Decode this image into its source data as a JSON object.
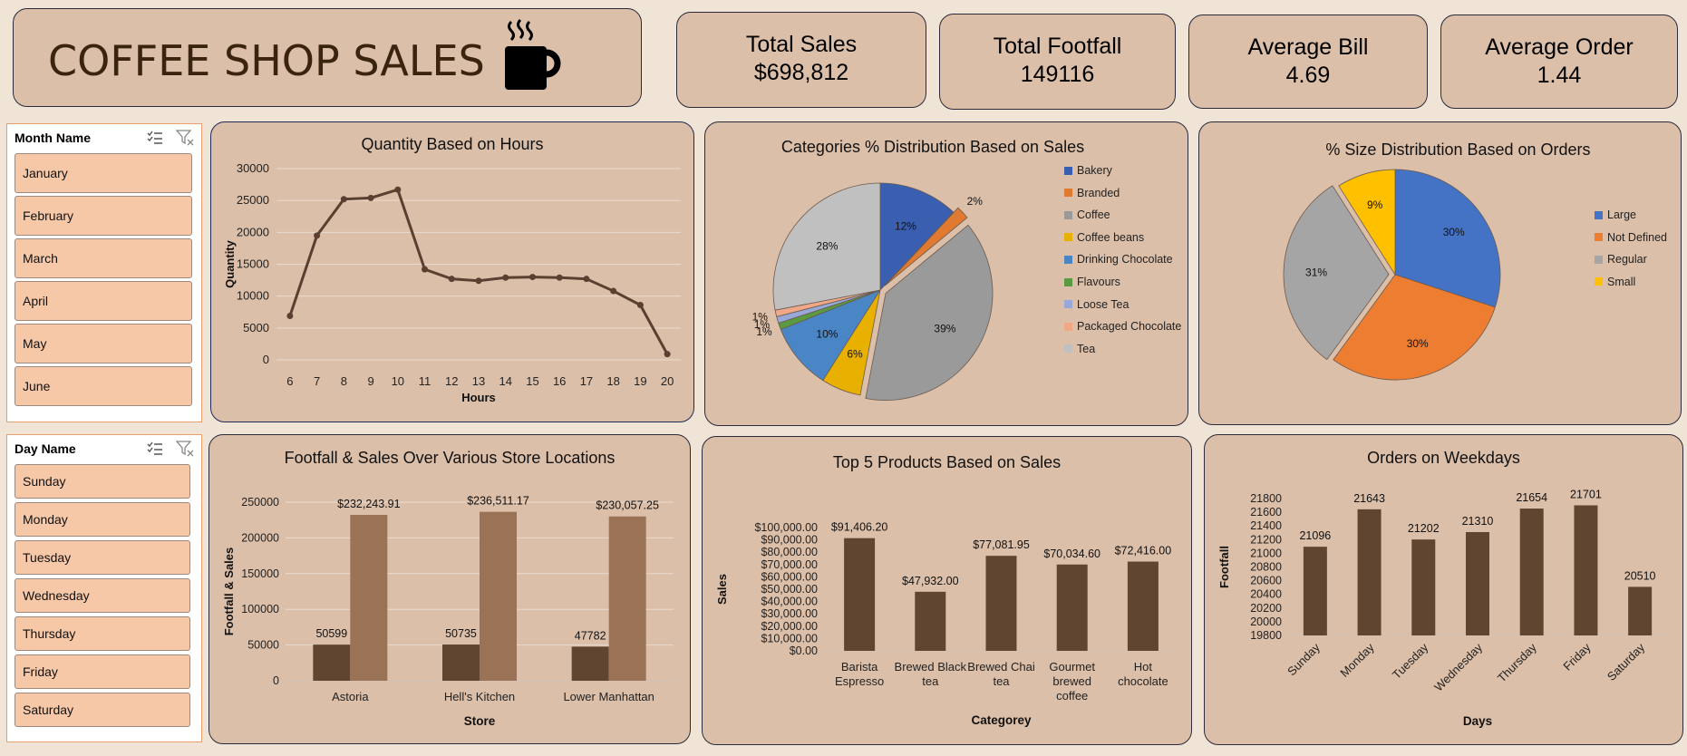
{
  "header": {
    "title": "COFFEE SHOP SALES"
  },
  "kpis": [
    {
      "label": "Total Sales",
      "value": "$698,812"
    },
    {
      "label": "Total Footfall",
      "value": "149116"
    },
    {
      "label": "Average Bill",
      "value": "4.69"
    },
    {
      "label": "Average Order",
      "value": "1.44"
    }
  ],
  "slicers": {
    "month": {
      "title": "Month Name",
      "items": [
        "January",
        "February",
        "March",
        "April",
        "May",
        "June"
      ]
    },
    "day": {
      "title": "Day Name",
      "items": [
        "Sunday",
        "Monday",
        "Tuesday",
        "Wednesday",
        "Thursday",
        "Friday",
        "Saturday"
      ]
    }
  },
  "colors": {
    "bar_dark": "#604630",
    "bar_light": "#9a7357",
    "line": "#5a4030",
    "panel": "#dcbfa9"
  },
  "chart_data": [
    {
      "id": "hours",
      "type": "line",
      "title": "Quantity Based on Hours",
      "xlabel": "Hours",
      "ylabel": "Quantity",
      "x": [
        6,
        7,
        8,
        9,
        10,
        11,
        12,
        13,
        14,
        15,
        16,
        17,
        18,
        19,
        20
      ],
      "values": [
        6900,
        19500,
        25200,
        25400,
        26700,
        14200,
        12700,
        12400,
        12900,
        13000,
        12900,
        12700,
        10800,
        8600,
        900
      ],
      "ylim": [
        0,
        30000
      ],
      "yticks": [
        "0",
        "5000",
        "10000",
        "15000",
        "20000",
        "25000",
        "30000"
      ],
      "grid": true
    },
    {
      "id": "categories",
      "type": "pie",
      "title": "Categories % Distribution Based on Sales",
      "legend": "right",
      "slices": [
        {
          "name": "Bakery",
          "value": 12,
          "label": "12%",
          "color": "#3a5fb0"
        },
        {
          "name": "Branded",
          "value": 2,
          "label": "2%",
          "color": "#e07a30"
        },
        {
          "name": "Coffee",
          "value": 39,
          "label": "39%",
          "color": "#9a9a9a"
        },
        {
          "name": "Coffee beans",
          "value": 6,
          "label": "6%",
          "color": "#e8b000"
        },
        {
          "name": "Drinking Chocolate",
          "value": 10,
          "label": "10%",
          "color": "#4a86c5"
        },
        {
          "name": "Flavours",
          "value": 1,
          "label": "1%",
          "color": "#5a9a40"
        },
        {
          "name": "Loose Tea",
          "value": 1,
          "label": "1%",
          "color": "#98a8d8"
        },
        {
          "name": "Packaged Chocolate",
          "value": 1,
          "label": "1%",
          "color": "#f0a888"
        },
        {
          "name": "Tea",
          "value": 28,
          "label": "28%",
          "color": "#c0c0c0"
        }
      ]
    },
    {
      "id": "sizes",
      "type": "pie",
      "title": "% Size Distribution Based on Orders",
      "legend": "right",
      "slices": [
        {
          "name": "Large",
          "value": 30,
          "label": "30%",
          "color": "#4472c4"
        },
        {
          "name": "Not Defined",
          "value": 30,
          "label": "30%",
          "color": "#ed7d31"
        },
        {
          "name": "Regular",
          "value": 31,
          "label": "31%",
          "color": "#a5a5a5"
        },
        {
          "name": "Small",
          "value": 9,
          "label": "9%",
          "color": "#ffc000"
        }
      ]
    },
    {
      "id": "stores",
      "type": "bar",
      "title": "Footfall & Sales Over Various Store Locations",
      "xlabel": "Store",
      "ylabel": "Footfall & Sales",
      "categories": [
        "Astoria",
        "Hell's Kitchen",
        "Lower Manhattan"
      ],
      "series": [
        {
          "values": [
            50599,
            50735,
            47782
          ],
          "labels": [
            "50599",
            "50735",
            "47782"
          ]
        },
        {
          "values": [
            232243.91,
            236511.17,
            230057.25
          ],
          "labels": [
            "$232,243.91",
            "$236,511.17",
            "$230,057.25"
          ]
        }
      ],
      "ylim": [
        0,
        250000
      ],
      "yticks": [
        "0",
        "50000",
        "100000",
        "150000",
        "200000",
        "250000"
      ],
      "grid": true
    },
    {
      "id": "products",
      "type": "bar",
      "title": "Top 5 Products Based on Sales",
      "xlabel": "Categorey",
      "ylabel": "Sales",
      "categories": [
        "Barista Espresso",
        "Brewed Black tea",
        "Brewed Chai tea",
        "Gourmet brewed coffee",
        "Hot chocolate"
      ],
      "values": [
        91406.2,
        47932.0,
        77081.95,
        70034.6,
        72416.0
      ],
      "labels": [
        "$91,406.20",
        "$47,932.00",
        "$77,081.95",
        "$70,034.60",
        "$72,416.00"
      ],
      "ylim": [
        0,
        100000
      ],
      "yticks": [
        "$0.00",
        "$10,000.00",
        "$20,000.00",
        "$30,000.00",
        "$40,000.00",
        "$50,000.00",
        "$60,000.00",
        "$70,000.00",
        "$80,000.00",
        "$90,000.00",
        "$100,000.00"
      ]
    },
    {
      "id": "weekdays",
      "type": "bar",
      "title": "Orders on Weekdays",
      "xlabel": "Days",
      "ylabel": "Footfall",
      "categories": [
        "Sunday",
        "Monday",
        "Tuesday",
        "Wednesday",
        "Thursday",
        "Friday",
        "Saturday"
      ],
      "values": [
        21096,
        21643,
        21202,
        21310,
        21654,
        21701,
        20510
      ],
      "labels": [
        "21096",
        "21643",
        "21202",
        "21310",
        "21654",
        "21701",
        "20510"
      ],
      "ylim": [
        19800,
        21800
      ],
      "yticks": [
        "19800",
        "20000",
        "20200",
        "20400",
        "20600",
        "20800",
        "21000",
        "21200",
        "21400",
        "21600",
        "21800"
      ]
    }
  ]
}
